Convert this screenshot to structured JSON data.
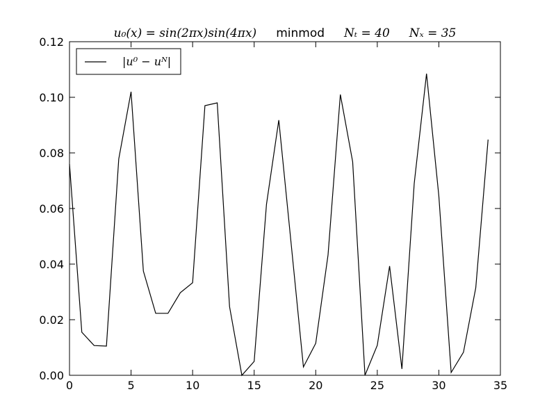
{
  "chart_data": {
    "type": "line",
    "title": {
      "formula": "u₀(x) = sin(2πx)sin(4πx)",
      "method": "minmod",
      "nt": "Nₜ = 40",
      "nx": "Nₓ = 35"
    },
    "xlabel": "",
    "ylabel": "",
    "xlim": [
      0,
      35
    ],
    "ylim": [
      0,
      0.12
    ],
    "xticks": [
      0,
      5,
      10,
      15,
      20,
      25,
      30,
      35
    ],
    "xtick_labels": [
      "0",
      "5",
      "10",
      "15",
      "20",
      "25",
      "30",
      "35"
    ],
    "yticks": [
      0,
      0.02,
      0.04,
      0.06,
      0.08,
      0.1,
      0.12
    ],
    "ytick_labels": [
      "0.00",
      "0.02",
      "0.04",
      "0.06",
      "0.08",
      "0.10",
      "0.12"
    ],
    "grid": false,
    "legend_position": "top-left",
    "series": [
      {
        "name": "|u⁰ − uᴺ|",
        "color": "#000000",
        "x": [
          0,
          1,
          2,
          3,
          4,
          5,
          6,
          7,
          8,
          9,
          10,
          11,
          12,
          13,
          14,
          15,
          16,
          17,
          18,
          19,
          20,
          21,
          22,
          23,
          24,
          25,
          26,
          27,
          28,
          29,
          30,
          31,
          32,
          33,
          34
        ],
        "y": [
          0.076,
          0.0155,
          0.0107,
          0.0105,
          0.0778,
          0.102,
          0.0375,
          0.0223,
          0.0223,
          0.0297,
          0.0333,
          0.097,
          0.098,
          0.0247,
          0.0,
          0.005,
          0.0615,
          0.0918,
          0.0475,
          0.003,
          0.0115,
          0.0433,
          0.101,
          0.0768,
          0.0,
          0.0108,
          0.0393,
          0.0023,
          0.069,
          0.1085,
          0.0645,
          0.001,
          0.0083,
          0.0315,
          0.0848
        ]
      }
    ]
  }
}
